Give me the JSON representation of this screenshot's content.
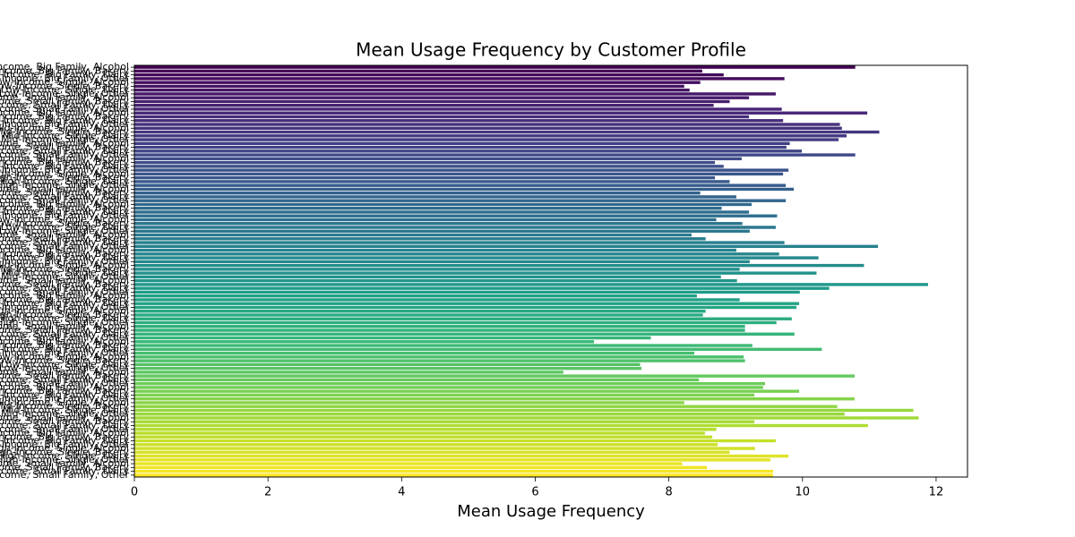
{
  "chart_data": {
    "type": "barh",
    "title": "Mean Usage Frequency by Customer Profile",
    "xlabel": "Mean Usage Frequency",
    "colormap": "viridis",
    "xlim": [
      0,
      12.47
    ],
    "xticks": [
      0,
      2,
      4,
      6,
      8,
      10,
      12
    ],
    "categories": [
      "Young Low-Income, Big Family, Alcohol",
      "Young Low-Income, Big Family, Bakery",
      "Young Low-Income, Big Family, Dairy",
      "Young Low-Income, Big Family, Other",
      "Young Low-Income, Single, Alcohol",
      "Young Low-Income, Single, Bakery",
      "Young Low-Income, Single, Dairy",
      "Young Low-Income, Single, Other",
      "Young Low-Income, Small Family, Alcohol",
      "Young Low-Income, Small Family, Bakery",
      "Young Low-Income, Small Family, Dairy",
      "Young Low-Income, Small Family, Other",
      "Young Mid-Income, Big Family, Alcohol",
      "Young Mid-Income, Big Family, Bakery",
      "Young Mid-Income, Big Family, Dairy",
      "Young Mid-Income, Big Family, Other",
      "Young Mid-Income, Single, Alcohol",
      "Young Mid-Income, Single, Bakery",
      "Young Mid-Income, Single, Dairy",
      "Young Mid-Income, Single, Other",
      "Young Mid-Income, Small Family, Alcohol",
      "Young Mid-Income, Small Family, Bakery",
      "Young Mid-Income, Small Family, Dairy",
      "Young Mid-Income, Small Family, Other",
      "Young High-Income, Big Family, Alcohol",
      "Young High-Income, Big Family, Bakery",
      "Young High-Income, Big Family, Dairy",
      "Young High-Income, Big Family, Other",
      "Young High-Income, Single, Alcohol",
      "Young High-Income, Single, Bakery",
      "Young High-Income, Single, Dairy",
      "Young High-Income, Single, Other",
      "Young High-Income, Small Family, Alcohol",
      "Young High-Income, Small Family, Bakery",
      "Young High-Income, Small Family, Dairy",
      "Young High-Income, Small Family, Other",
      "Adult Low-Income, Big Family, Alcohol",
      "Adult Low-Income, Big Family, Bakery",
      "Adult Low-Income, Big Family, Dairy",
      "Adult Low-Income, Big Family, Other",
      "Adult Low-Income, Single, Alcohol",
      "Adult Low-Income, Single, Bakery",
      "Adult Low-Income, Single, Dairy",
      "Adult Low-Income, Single, Other",
      "Adult Low-Income, Small Family, Alcohol",
      "Adult Low-Income, Small Family, Bakery",
      "Adult Low-Income, Small Family, Dairy",
      "Adult Low-Income, Small Family, Other",
      "Adult Mid-Income, Big Family, Alcohol",
      "Adult Mid-Income, Big Family, Bakery",
      "Adult Mid-Income, Big Family, Dairy",
      "Adult Mid-Income, Big Family, Other",
      "Adult Mid-Income, Single, Alcohol",
      "Adult Mid-Income, Single, Bakery",
      "Adult Mid-Income, Single, Dairy",
      "Adult Mid-Income, Single, Other",
      "Adult Mid-Income, Small Family, Alcohol",
      "Adult Mid-Income, Small Family, Bakery",
      "Adult Mid-Income, Small Family, Dairy",
      "Adult Mid-Income, Small Family, Other",
      "Adult High-Income, Big Family, Alcohol",
      "Adult High-Income, Big Family, Bakery",
      "Adult High-Income, Big Family, Dairy",
      "Adult High-Income, Big Family, Other",
      "Adult High-Income, Single, Alcohol",
      "Adult High-Income, Single, Bakery",
      "Adult High-Income, Single, Dairy",
      "Adult High-Income, Single, Other",
      "Adult High-Income, Small Family, Alcohol",
      "Adult High-Income, Small Family, Bakery",
      "Adult High-Income, Small Family, Dairy",
      "Adult High-Income, Small Family, Other",
      "Senior Low-Income, Big Family, Alcohol",
      "Senior Low-Income, Big Family, Bakery",
      "Senior Low-Income, Big Family, Dairy",
      "Senior Low-Income, Big Family, Other",
      "Senior Low-Income, Single, Alcohol",
      "Senior Low-Income, Single, Bakery",
      "Senior Low-Income, Single, Dairy",
      "Senior Low-Income, Single, Other",
      "Senior Low-Income, Small Family, Alcohol",
      "Senior Low-Income, Small Family, Bakery",
      "Senior Low-Income, Small Family, Dairy",
      "Senior Low-Income, Small Family, Other",
      "Senior Mid-Income, Big Family, Alcohol",
      "Senior Mid-Income, Big Family, Bakery",
      "Senior Mid-Income, Big Family, Dairy",
      "Senior Mid-Income, Big Family, Other",
      "Senior Mid-Income, Single, Alcohol",
      "Senior Mid-Income, Single, Bakery",
      "Senior Mid-Income, Single, Dairy",
      "Senior Mid-Income, Single, Other",
      "Senior Mid-Income, Small Family, Alcohol",
      "Senior Mid-Income, Small Family, Bakery",
      "Senior Mid-Income, Small Family, Dairy",
      "Senior Mid-Income, Small Family, Other",
      "Senior High-Income, Big Family, Alcohol",
      "Senior High-Income, Big Family, Bakery",
      "Senior High-Income, Big Family, Dairy",
      "Senior High-Income, Big Family, Other",
      "Senior High-Income, Single, Alcohol",
      "Senior High-Income, Single, Bakery",
      "Senior High-Income, Single, Dairy",
      "Senior High-Income, Single, Other",
      "Senior High-Income, Small Family, Alcohol",
      "Senior High-Income, Small Family, Bakery",
      "Senior High-Income, Small Family, Dairy",
      "Senior High-Income, Small Family, Other"
    ],
    "values": [
      10.79,
      8.5,
      8.82,
      9.73,
      8.47,
      8.23,
      8.31,
      9.6,
      9.2,
      8.91,
      8.67,
      9.69,
      10.97,
      9.2,
      9.71,
      10.56,
      10.59,
      11.15,
      10.66,
      10.54,
      9.81,
      9.76,
      9.99,
      10.79,
      9.09,
      8.69,
      8.82,
      9.79,
      9.71,
      8.69,
      8.91,
      9.75,
      9.87,
      8.47,
      9.01,
      9.75,
      9.24,
      8.79,
      9.2,
      9.62,
      8.71,
      9.1,
      9.6,
      9.21,
      8.34,
      8.55,
      9.73,
      11.13,
      9.01,
      9.65,
      10.24,
      9.21,
      10.92,
      9.06,
      10.21,
      8.78,
      9.02,
      11.88,
      10.4,
      9.96,
      8.42,
      9.06,
      9.95,
      9.91,
      8.55,
      8.51,
      9.84,
      9.61,
      9.14,
      9.14,
      9.88,
      7.73,
      6.88,
      9.25,
      10.29,
      8.38,
      9.12,
      9.14,
      7.57,
      7.59,
      6.42,
      10.78,
      8.45,
      9.44,
      9.41,
      9.95,
      9.28,
      10.78,
      8.23,
      10.52,
      11.66,
      10.63,
      11.74,
      9.28,
      10.98,
      8.71,
      8.54,
      8.65,
      9.6,
      8.73,
      9.29,
      8.91,
      9.79,
      9.52,
      8.2,
      8.57,
      9.56,
      9.56
    ]
  }
}
